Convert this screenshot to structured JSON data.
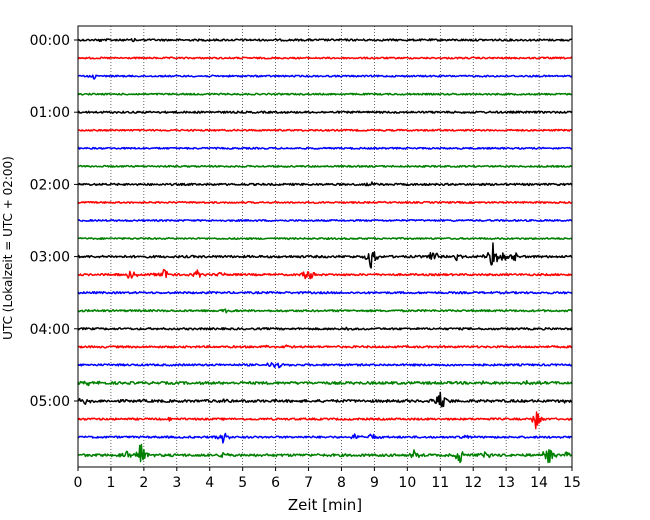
{
  "chart_data": {
    "type": "line",
    "title": "",
    "xlabel": "Zeit  [min]",
    "ylabel": "UTC (Lokalzeit = UTC + 02:00)",
    "xlim": [
      0,
      15
    ],
    "x_ticks": [
      "0",
      "1",
      "2",
      "3",
      "4",
      "5",
      "6",
      "7",
      "8",
      "9",
      "10",
      "11",
      "12",
      "13",
      "14",
      "15"
    ],
    "y_tick_labels": [
      "00:00",
      "01:00",
      "02:00",
      "03:00",
      "04:00",
      "05:00"
    ],
    "grid": "vertical dotted lines at each minute",
    "colors": [
      "#000000",
      "#ff0000",
      "#0000ff",
      "#008000"
    ],
    "series": [
      {
        "start": "00:00",
        "color": "#000000",
        "noise": 0.6,
        "events": [
          {
            "t": 0.7,
            "amp": 1.5
          },
          {
            "t": 1.7,
            "amp": 1.2
          }
        ]
      },
      {
        "start": "00:15",
        "color": "#ff0000",
        "noise": 0.5,
        "events": []
      },
      {
        "start": "00:30",
        "color": "#0000ff",
        "noise": 0.5,
        "events": [
          {
            "t": 0.5,
            "amp": 2.5
          }
        ]
      },
      {
        "start": "00:45",
        "color": "#008000",
        "noise": 0.5,
        "events": []
      },
      {
        "start": "01:00",
        "color": "#000000",
        "noise": 0.6,
        "events": []
      },
      {
        "start": "01:15",
        "color": "#ff0000",
        "noise": 0.5,
        "events": []
      },
      {
        "start": "01:30",
        "color": "#0000ff",
        "noise": 0.5,
        "events": []
      },
      {
        "start": "01:45",
        "color": "#008000",
        "noise": 0.5,
        "events": []
      },
      {
        "start": "02:00",
        "color": "#000000",
        "noise": 0.6,
        "events": [
          {
            "t": 8.9,
            "amp": 2
          }
        ]
      },
      {
        "start": "02:15",
        "color": "#ff0000",
        "noise": 0.5,
        "events": []
      },
      {
        "start": "02:30",
        "color": "#0000ff",
        "noise": 0.5,
        "events": []
      },
      {
        "start": "02:45",
        "color": "#008000",
        "noise": 0.5,
        "events": []
      },
      {
        "start": "03:00",
        "color": "#000000",
        "noise": 0.7,
        "events": [
          {
            "t": 8.9,
            "amp": 12
          },
          {
            "t": 10.8,
            "amp": 7
          },
          {
            "t": 11.5,
            "amp": 3
          },
          {
            "t": 12.6,
            "amp": 16
          },
          {
            "t": 12.95,
            "amp": 5
          },
          {
            "t": 13.25,
            "amp": 5
          }
        ]
      },
      {
        "start": "03:15",
        "color": "#ff0000",
        "noise": 0.6,
        "events": [
          {
            "t": 1.6,
            "amp": 5
          },
          {
            "t": 2.6,
            "amp": 7
          },
          {
            "t": 3.6,
            "amp": 5
          },
          {
            "t": 4.3,
            "amp": 3
          },
          {
            "t": 7.0,
            "amp": 8
          }
        ]
      },
      {
        "start": "03:30",
        "color": "#0000ff",
        "noise": 0.6,
        "events": []
      },
      {
        "start": "03:45",
        "color": "#008000",
        "noise": 0.6,
        "events": [
          {
            "t": 4.5,
            "amp": 1.5
          }
        ]
      },
      {
        "start": "04:00",
        "color": "#000000",
        "noise": 0.6,
        "events": [
          {
            "t": 8.2,
            "amp": 1.5
          }
        ]
      },
      {
        "start": "04:15",
        "color": "#ff0000",
        "noise": 0.6,
        "events": [
          {
            "t": 5.8,
            "amp": 3
          },
          {
            "t": 6.3,
            "amp": 2
          }
        ]
      },
      {
        "start": "04:30",
        "color": "#0000ff",
        "noise": 0.6,
        "events": [
          {
            "t": 5.9,
            "amp": 4
          },
          {
            "t": 6.1,
            "amp": 3
          }
        ]
      },
      {
        "start": "04:45",
        "color": "#008000",
        "noise": 0.8,
        "events": [
          {
            "t": 0.4,
            "amp": 4
          },
          {
            "t": 12.3,
            "amp": 2
          },
          {
            "t": 13.6,
            "amp": 2
          }
        ]
      },
      {
        "start": "05:00",
        "color": "#000000",
        "noise": 0.8,
        "events": [
          {
            "t": 0.2,
            "amp": 5
          },
          {
            "t": 4.4,
            "amp": 2
          },
          {
            "t": 11.0,
            "amp": 11
          },
          {
            "t": 14.8,
            "amp": 2
          }
        ]
      },
      {
        "start": "05:15",
        "color": "#ff0000",
        "noise": 0.6,
        "events": [
          {
            "t": 2.8,
            "amp": 3
          },
          {
            "t": 13.9,
            "amp": 10
          }
        ]
      },
      {
        "start": "05:30",
        "color": "#0000ff",
        "noise": 0.6,
        "events": [
          {
            "t": 4.4,
            "amp": 7
          },
          {
            "t": 8.4,
            "amp": 4
          },
          {
            "t": 8.9,
            "amp": 4
          },
          {
            "t": 11.8,
            "amp": 2
          }
        ]
      },
      {
        "start": "05:45",
        "color": "#008000",
        "noise": 0.8,
        "events": [
          {
            "t": 1.5,
            "amp": 4
          },
          {
            "t": 1.9,
            "amp": 13
          },
          {
            "t": 4.4,
            "amp": 4
          },
          {
            "t": 10.2,
            "amp": 5
          },
          {
            "t": 11.6,
            "amp": 9
          },
          {
            "t": 12.4,
            "amp": 4
          },
          {
            "t": 14.3,
            "amp": 11
          },
          {
            "t": 14.8,
            "amp": 4
          }
        ]
      }
    ]
  }
}
